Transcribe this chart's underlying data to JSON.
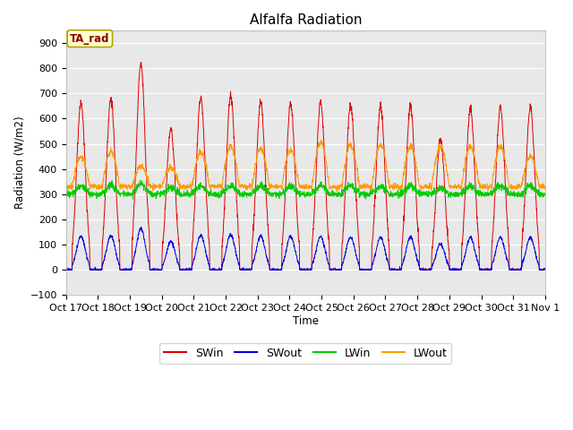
{
  "title": "Alfalfa Radiation",
  "xlabel": "Time",
  "ylabel": "Radiation (W/m2)",
  "ylim": [
    -100,
    950
  ],
  "xlim": [
    0,
    360
  ],
  "plot_bg": "#e8e8e8",
  "fig_bg": "#ffffff",
  "grid_color": "#ffffff",
  "annotation_text": "TA_rad",
  "annotation_color": "#880000",
  "annotation_bg": "#ffffcc",
  "annotation_border": "#aaaa00",
  "tick_labels": [
    "Oct 17",
    "Oct 18",
    "Oct 19",
    "Oct 20",
    "Oct 21",
    "Oct 22",
    "Oct 23",
    "Oct 24",
    "Oct 25",
    "Oct 26",
    "Oct 27",
    "Oct 28",
    "Oct 29",
    "Oct 30",
    "Oct 31",
    "Nov 1"
  ],
  "tick_positions": [
    0,
    24,
    48,
    72,
    96,
    120,
    144,
    168,
    192,
    216,
    240,
    264,
    288,
    312,
    336,
    360
  ],
  "SWin_color": "#dd0000",
  "SWout_color": "#0000dd",
  "LWin_color": "#00cc00",
  "LWout_color": "#ff9900",
  "n_points": 3600,
  "n_days": 16,
  "SW_peaks": [
    660,
    680,
    820,
    560,
    685,
    690,
    665,
    655,
    660,
    655,
    650,
    650,
    515,
    640,
    645,
    645
  ],
  "LW_night": 330,
  "LW_day_peaks": [
    450,
    470,
    410,
    405,
    465,
    490,
    480,
    475,
    505,
    495,
    495,
    490,
    490,
    490,
    490,
    450
  ]
}
